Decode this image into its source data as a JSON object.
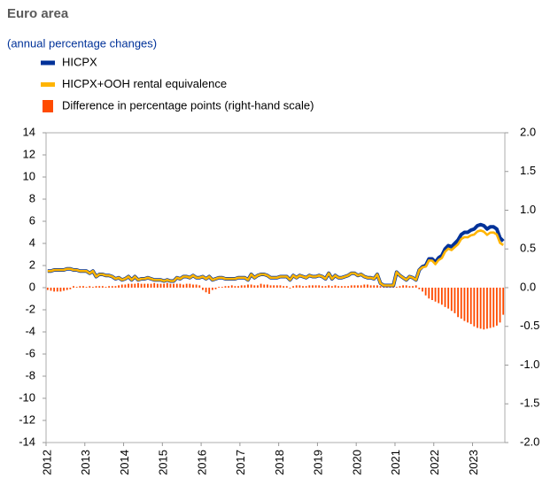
{
  "chart_data": {
    "type": "combo",
    "title": "Euro area",
    "subtitle": "(annual percentage changes)",
    "categories": [
      "2012",
      null,
      null,
      null,
      null,
      null,
      null,
      null,
      null,
      null,
      null,
      null,
      "2013",
      null,
      null,
      null,
      null,
      null,
      null,
      null,
      null,
      null,
      null,
      null,
      "2014",
      null,
      null,
      null,
      null,
      null,
      null,
      null,
      null,
      null,
      null,
      null,
      "2015",
      null,
      null,
      null,
      null,
      null,
      null,
      null,
      null,
      null,
      null,
      null,
      "2016",
      null,
      null,
      null,
      null,
      null,
      null,
      null,
      null,
      null,
      null,
      null,
      "2017",
      null,
      null,
      null,
      null,
      null,
      null,
      null,
      null,
      null,
      null,
      null,
      "2018",
      null,
      null,
      null,
      null,
      null,
      null,
      null,
      null,
      null,
      null,
      null,
      "2019",
      null,
      null,
      null,
      null,
      null,
      null,
      null,
      null,
      null,
      null,
      null,
      "2020",
      null,
      null,
      null,
      null,
      null,
      null,
      null,
      null,
      null,
      null,
      null,
      "2021",
      null,
      null,
      null,
      null,
      null,
      null,
      null,
      null,
      null,
      null,
      null,
      "2022",
      null,
      null,
      null,
      null,
      null,
      null,
      null,
      null,
      null,
      null,
      null,
      "2023",
      null,
      null,
      null,
      null,
      null,
      null,
      null,
      null,
      null
    ],
    "series": [
      {
        "name": "HICPX",
        "type": "line",
        "color": "#003299",
        "values": [
          1.5,
          1.5,
          1.6,
          1.6,
          1.6,
          1.6,
          1.7,
          1.7,
          1.6,
          1.6,
          1.5,
          1.5,
          1.5,
          1.3,
          1.5,
          1.0,
          1.2,
          1.2,
          1.1,
          1.1,
          1.0,
          0.8,
          0.9,
          0.7,
          0.8,
          1.0,
          0.7,
          1.0,
          0.7,
          0.8,
          0.8,
          0.9,
          0.8,
          0.7,
          0.7,
          0.7,
          0.6,
          0.7,
          0.6,
          0.6,
          0.9,
          0.8,
          1.0,
          1.0,
          0.9,
          1.1,
          0.9,
          0.9,
          1.0,
          0.8,
          1.0,
          0.7,
          0.8,
          0.9,
          0.9,
          0.8,
          0.8,
          0.8,
          0.8,
          0.9,
          0.9,
          0.9,
          0.7,
          1.2,
          0.9,
          1.1,
          1.2,
          1.2,
          1.1,
          0.9,
          0.9,
          0.9,
          1.0,
          1.0,
          1.0,
          0.7,
          1.1,
          0.9,
          1.1,
          1.0,
          0.9,
          1.1,
          1.0,
          1.0,
          1.1,
          1.0,
          0.8,
          1.3,
          0.8,
          1.1,
          0.9,
          0.9,
          1.0,
          1.1,
          1.3,
          1.3,
          1.1,
          1.2,
          1.0,
          0.9,
          0.9,
          0.8,
          1.2,
          0.4,
          0.2,
          0.2,
          0.2,
          0.2,
          1.4,
          1.1,
          0.9,
          0.7,
          1.0,
          0.9,
          0.7,
          1.6,
          1.9,
          2.0,
          2.6,
          2.6,
          2.3,
          2.7,
          2.9,
          3.5,
          3.8,
          3.7,
          4.0,
          4.3,
          4.8,
          5.0,
          5.0,
          5.2,
          5.3,
          5.6,
          5.7,
          5.6,
          5.3,
          5.5,
          5.5,
          5.3,
          4.5,
          4.2
        ]
      },
      {
        "name": "HICPX+OOH rental equivalence",
        "type": "line",
        "color": "#ffb400",
        "values": [
          1.5,
          1.5,
          1.6,
          1.6,
          1.6,
          1.6,
          1.7,
          1.7,
          1.6,
          1.6,
          1.5,
          1.5,
          1.5,
          1.3,
          1.5,
          1.0,
          1.2,
          1.2,
          1.1,
          1.1,
          1.0,
          0.8,
          0.9,
          0.7,
          0.8,
          1.0,
          0.7,
          1.0,
          0.7,
          0.8,
          0.8,
          0.9,
          0.8,
          0.7,
          0.7,
          0.7,
          0.6,
          0.7,
          0.6,
          0.6,
          0.9,
          0.8,
          1.0,
          1.0,
          0.9,
          1.1,
          0.9,
          0.9,
          1.0,
          0.8,
          1.0,
          0.7,
          0.8,
          0.9,
          0.9,
          0.8,
          0.8,
          0.8,
          0.8,
          0.9,
          0.9,
          0.9,
          0.7,
          1.2,
          0.9,
          1.1,
          1.2,
          1.2,
          1.1,
          0.9,
          0.9,
          0.9,
          1.0,
          1.0,
          1.0,
          0.7,
          1.1,
          0.9,
          1.1,
          1.0,
          0.9,
          1.1,
          1.0,
          1.0,
          1.1,
          1.0,
          0.8,
          1.3,
          0.8,
          1.1,
          0.9,
          0.9,
          1.0,
          1.1,
          1.3,
          1.3,
          1.1,
          1.2,
          1.0,
          0.9,
          0.9,
          0.8,
          1.2,
          0.4,
          0.2,
          0.2,
          0.2,
          0.2,
          1.4,
          1.1,
          0.9,
          0.7,
          1.0,
          0.9,
          0.7,
          1.6,
          1.85,
          1.9,
          2.46,
          2.44,
          2.12,
          2.5,
          2.68,
          3.25,
          3.53,
          3.4,
          3.67,
          3.92,
          4.4,
          4.57,
          4.55,
          4.73,
          4.8,
          5.08,
          5.17,
          5.06,
          4.77,
          4.98,
          4.99,
          4.81,
          4.05,
          3.85
        ]
      },
      {
        "name": "Difference in percentage points (right-hand scale)",
        "type": "bar",
        "axis": "y2",
        "color": "#ff4b00",
        "values": [
          -0.03,
          -0.04,
          -0.05,
          -0.05,
          -0.05,
          -0.04,
          -0.03,
          -0.02,
          0.02,
          0.01,
          0.02,
          0.02,
          0.01,
          0.02,
          0.01,
          0.02,
          0.02,
          0.02,
          0.01,
          0.02,
          0.02,
          0.02,
          0.03,
          0.04,
          0.04,
          0.05,
          0.05,
          0.05,
          0.06,
          0.05,
          0.05,
          0.05,
          0.05,
          0.06,
          0.05,
          0.05,
          0.05,
          0.06,
          0.05,
          0.05,
          0.05,
          0.05,
          0.04,
          0.05,
          0.05,
          0.04,
          0.04,
          0.03,
          -0.03,
          -0.06,
          -0.08,
          -0.03,
          -0.02,
          0.01,
          0.01,
          0.02,
          0.02,
          0.03,
          0.02,
          0.02,
          0.03,
          0.03,
          0.04,
          0.04,
          0.03,
          0.03,
          0.05,
          0.04,
          0.04,
          0.03,
          0.03,
          0.03,
          0.03,
          0.02,
          0.02,
          -0.01,
          0.02,
          0.03,
          0.03,
          0.02,
          0.02,
          0.03,
          0.03,
          0.03,
          0.03,
          0.02,
          0.02,
          0.03,
          0.02,
          0.03,
          0.02,
          0.02,
          0.02,
          0.02,
          0.03,
          0.03,
          0.03,
          0.03,
          0.04,
          0.04,
          0.03,
          0.03,
          0.03,
          0.02,
          0.02,
          0.02,
          0.02,
          0.02,
          0.01,
          0.02,
          0.03,
          0.03,
          0.02,
          0.02,
          0.03,
          -0.02,
          -0.05,
          -0.1,
          -0.14,
          -0.16,
          -0.18,
          -0.2,
          -0.22,
          -0.25,
          -0.27,
          -0.3,
          -0.33,
          -0.38,
          -0.4,
          -0.43,
          -0.45,
          -0.47,
          -0.5,
          -0.52,
          -0.53,
          -0.54,
          -0.53,
          -0.52,
          -0.51,
          -0.49,
          -0.45,
          -0.35
        ]
      }
    ],
    "ylim": [
      -14,
      14
    ],
    "yticks": [
      -14,
      -12,
      -10,
      -8,
      -6,
      -4,
      -2,
      0,
      2,
      4,
      6,
      8,
      10,
      12,
      14
    ],
    "y2lim": [
      -2,
      2
    ],
    "y2ticks": [
      {
        "value": -2,
        "label": "-2.0"
      },
      {
        "value": -1.5,
        "label": "-1.5"
      },
      {
        "value": -1,
        "label": "-1.0"
      },
      {
        "value": -0.5,
        "label": "-0.5"
      },
      {
        "value": 0,
        "label": "0.0"
      },
      {
        "value": 0.5,
        "label": "0.5"
      },
      {
        "value": 1,
        "label": "1.0"
      },
      {
        "value": 1.5,
        "label": "1.5"
      },
      {
        "value": 2,
        "label": "2.0"
      }
    ],
    "grid": false
  }
}
